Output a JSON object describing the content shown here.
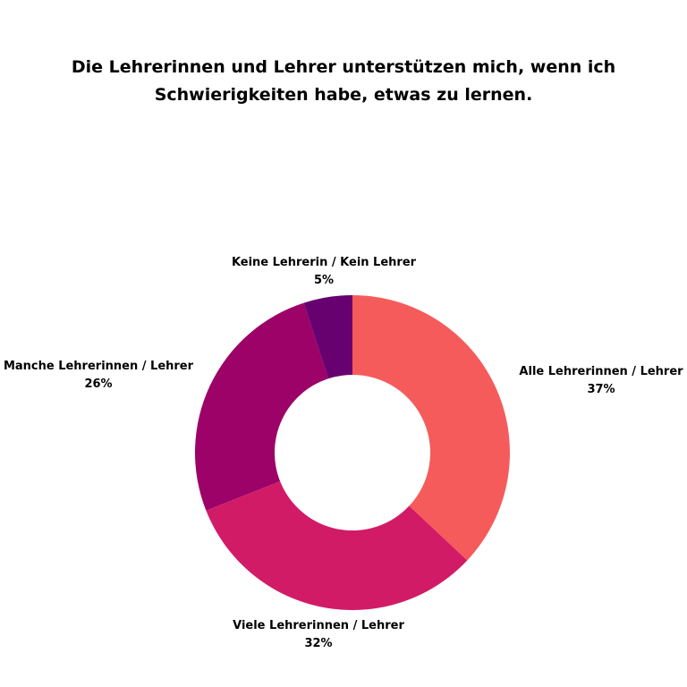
{
  "chart_data": {
    "type": "pie",
    "title_lines": [
      "Die Lehrerinnen und Lehrer unterstützen mich, wenn ich",
      "Schwierigkeiten habe, etwas zu lernen."
    ],
    "donut": true,
    "slices": [
      {
        "label": "Alle Lehrerinnen / Lehrer",
        "value": 37,
        "value_label": "37%",
        "color": "#F65B5B"
      },
      {
        "label": "Viele Lehrerinnen / Lehrer",
        "value": 32,
        "value_label": "32%",
        "color": "#D21B66"
      },
      {
        "label": "Manche Lehrerinnen / Lehrer",
        "value": 26,
        "value_label": "26%",
        "color": "#9C0268"
      },
      {
        "label": "Keine Lehrerin / Kein Lehrer",
        "value": 5,
        "value_label": "5%",
        "color": "#670170"
      }
    ]
  }
}
